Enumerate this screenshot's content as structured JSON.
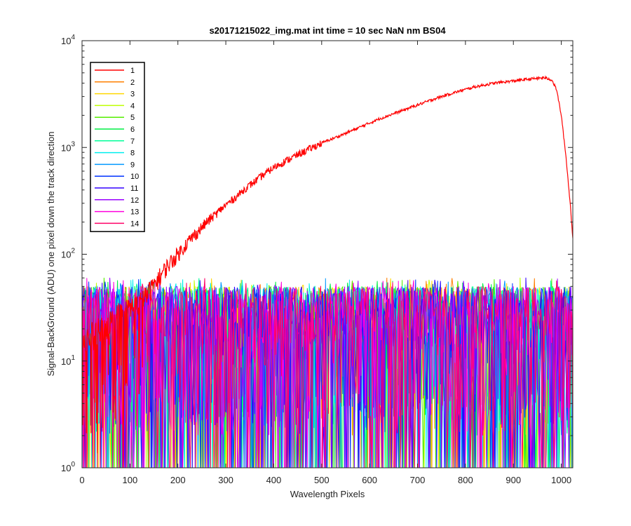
{
  "chart_data": {
    "type": "line",
    "title": "s20171215022_img.mat int time = 10 sec  NaN nm BS04",
    "xlabel": "Wavelength Pixels",
    "ylabel": "Signal-BackGround (ADU) one pixel down the track direction",
    "x_scale": "linear",
    "y_scale": "log",
    "xlim": [
      0,
      1024
    ],
    "ylim": [
      1,
      10000
    ],
    "x_ticks": [
      "0",
      "100",
      "200",
      "300",
      "400",
      "500",
      "600",
      "700",
      "800",
      "900",
      "1000"
    ],
    "x_tick_values": [
      0,
      100,
      200,
      300,
      400,
      500,
      600,
      700,
      800,
      900,
      1000
    ],
    "y_ticks": [
      {
        "base": "10",
        "exp": "0",
        "value": 1
      },
      {
        "base": "10",
        "exp": "1",
        "value": 10
      },
      {
        "base": "10",
        "exp": "2",
        "value": 100
      },
      {
        "base": "10",
        "exp": "3",
        "value": 1000
      },
      {
        "base": "10",
        "exp": "4",
        "value": 10000
      }
    ],
    "grid": false,
    "legend_position": "top-left",
    "series": [
      {
        "name": "1",
        "color": "#ff0000",
        "x": [
          0,
          40,
          80,
          120,
          140,
          160,
          180,
          200,
          220,
          240,
          260,
          280,
          300,
          320,
          340,
          360,
          380,
          400,
          430,
          460,
          500,
          540,
          580,
          620,
          660,
          700,
          740,
          780,
          820,
          860,
          900,
          940,
          965,
          980,
          990,
          1000,
          1010,
          1020,
          1024
        ],
        "y": [
          15,
          20,
          28,
          35,
          45,
          60,
          80,
          100,
          130,
          160,
          200,
          240,
          290,
          340,
          410,
          480,
          560,
          650,
          770,
          900,
          1100,
          1300,
          1550,
          1850,
          2150,
          2500,
          2900,
          3300,
          3700,
          4000,
          4200,
          4400,
          4500,
          4300,
          3500,
          2000,
          800,
          250,
          140
        ]
      },
      {
        "name": "2",
        "color": "#ff7f00",
        "noise_band": [
          1,
          55
        ]
      },
      {
        "name": "3",
        "color": "#ffd700",
        "noise_band": [
          1,
          55
        ]
      },
      {
        "name": "4",
        "color": "#bfff00",
        "noise_band": [
          1,
          55
        ]
      },
      {
        "name": "5",
        "color": "#55ee00",
        "noise_band": [
          1,
          55
        ]
      },
      {
        "name": "6",
        "color": "#00ee44",
        "noise_band": [
          1,
          55
        ]
      },
      {
        "name": "7",
        "color": "#00ff99",
        "noise_band": [
          1,
          55
        ]
      },
      {
        "name": "8",
        "color": "#00eeee",
        "noise_band": [
          1,
          55
        ]
      },
      {
        "name": "9",
        "color": "#0099ff",
        "noise_band": [
          1,
          55
        ]
      },
      {
        "name": "10",
        "color": "#0033ff",
        "noise_band": [
          1,
          55
        ]
      },
      {
        "name": "11",
        "color": "#3300ff",
        "noise_band": [
          1,
          55
        ]
      },
      {
        "name": "12",
        "color": "#9900ff",
        "noise_band": [
          1,
          55
        ]
      },
      {
        "name": "13",
        "color": "#ff00dd",
        "noise_band": [
          1,
          55
        ]
      },
      {
        "name": "14",
        "color": "#ff0066",
        "noise_band": [
          1,
          55
        ]
      }
    ]
  }
}
